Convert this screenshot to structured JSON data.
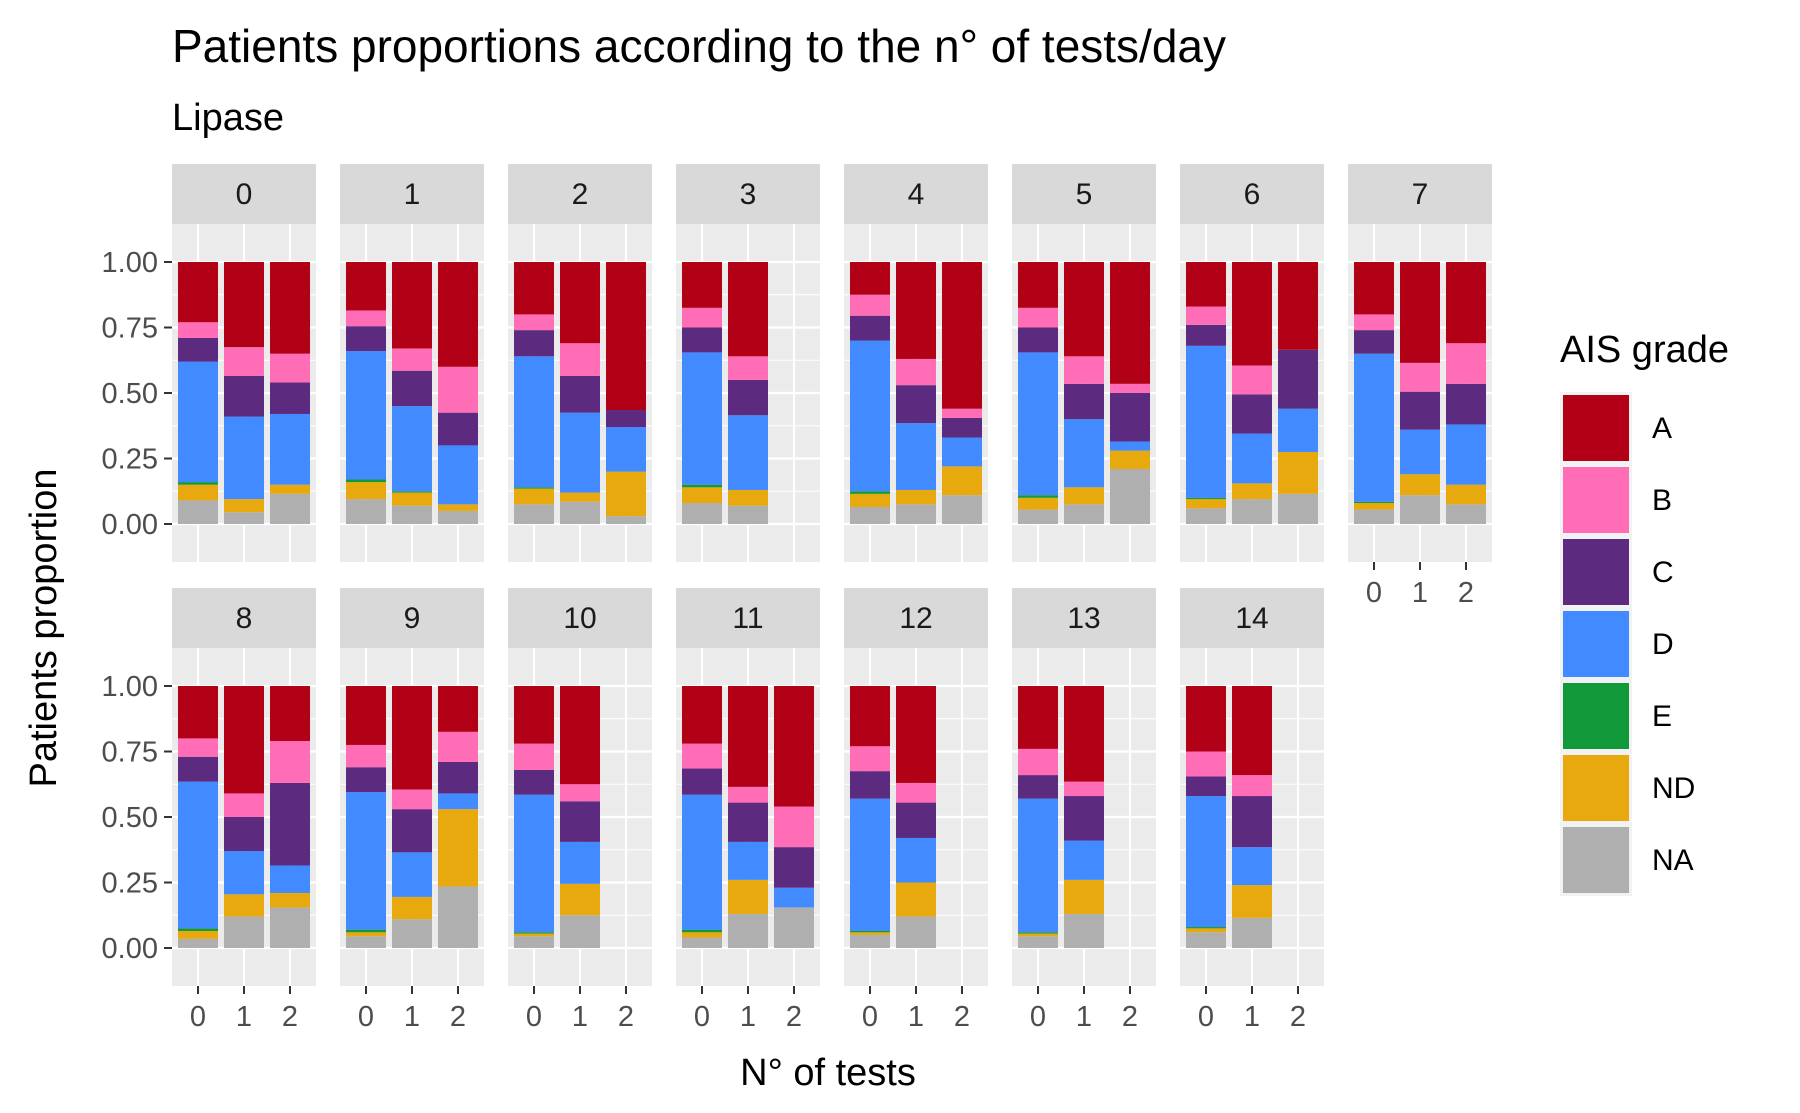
{
  "chart_data": {
    "type": "bar",
    "stacked": true,
    "title": "Patients proportions according to the n° of tests/day",
    "subtitle": "Lipase",
    "xlabel": "N° of tests",
    "ylabel": "Patients proportion",
    "ylim": [
      0,
      1
    ],
    "yticks": [
      "0.00",
      "0.25",
      "0.50",
      "0.75",
      "1.00"
    ],
    "x_categories": [
      "0",
      "1",
      "2"
    ],
    "legend": {
      "title": "AIS grade",
      "position": "right",
      "entries": [
        {
          "name": "A",
          "color": "#B20016"
        },
        {
          "name": "B",
          "color": "#FF6DB6"
        },
        {
          "name": "C",
          "color": "#5C2A7E"
        },
        {
          "name": "D",
          "color": "#418AFF"
        },
        {
          "name": "E",
          "color": "#129A3A"
        },
        {
          "name": "ND",
          "color": "#E7A90D"
        },
        {
          "name": "NA",
          "color": "#AFAFAF"
        }
      ]
    },
    "stack_order_bottom_to_top": [
      "NA",
      "ND",
      "E",
      "D",
      "C",
      "B",
      "A"
    ],
    "panels": [
      {
        "label": "0",
        "bars": [
          {
            "x": "0",
            "NA": 0.09,
            "ND": 0.06,
            "E": 0.01,
            "D": 0.46,
            "C": 0.09,
            "B": 0.06,
            "A": 0.23
          },
          {
            "x": "1",
            "NA": 0.045,
            "ND": 0.05,
            "E": 0.0,
            "D": 0.315,
            "C": 0.155,
            "B": 0.11,
            "A": 0.325
          },
          {
            "x": "2",
            "NA": 0.115,
            "ND": 0.035,
            "E": 0.0,
            "D": 0.27,
            "C": 0.12,
            "B": 0.11,
            "A": 0.35
          }
        ]
      },
      {
        "label": "1",
        "bars": [
          {
            "x": "0",
            "NA": 0.095,
            "ND": 0.065,
            "E": 0.01,
            "D": 0.49,
            "C": 0.095,
            "B": 0.06,
            "A": 0.185
          },
          {
            "x": "1",
            "NA": 0.07,
            "ND": 0.05,
            "E": 0.005,
            "D": 0.325,
            "C": 0.135,
            "B": 0.085,
            "A": 0.33
          },
          {
            "x": "2",
            "NA": 0.05,
            "ND": 0.025,
            "E": 0.0,
            "D": 0.225,
            "C": 0.125,
            "B": 0.175,
            "A": 0.4
          }
        ]
      },
      {
        "label": "2",
        "bars": [
          {
            "x": "0",
            "NA": 0.075,
            "ND": 0.06,
            "E": 0.005,
            "D": 0.5,
            "C": 0.1,
            "B": 0.06,
            "A": 0.2
          },
          {
            "x": "1",
            "NA": 0.085,
            "ND": 0.035,
            "E": 0.0,
            "D": 0.305,
            "C": 0.14,
            "B": 0.125,
            "A": 0.31
          },
          {
            "x": "2",
            "NA": 0.03,
            "ND": 0.17,
            "E": 0.0,
            "D": 0.17,
            "C": 0.065,
            "B": 0.0,
            "A": 0.565
          }
        ]
      },
      {
        "label": "3",
        "bars": [
          {
            "x": "0",
            "NA": 0.08,
            "ND": 0.06,
            "E": 0.01,
            "D": 0.505,
            "C": 0.095,
            "B": 0.075,
            "A": 0.175
          },
          {
            "x": "1",
            "NA": 0.07,
            "ND": 0.06,
            "E": 0.0,
            "D": 0.285,
            "C": 0.135,
            "B": 0.09,
            "A": 0.36
          }
        ]
      },
      {
        "label": "4",
        "bars": [
          {
            "x": "0",
            "NA": 0.065,
            "ND": 0.05,
            "E": 0.01,
            "D": 0.575,
            "C": 0.095,
            "B": 0.08,
            "A": 0.125
          },
          {
            "x": "1",
            "NA": 0.075,
            "ND": 0.055,
            "E": 0.0,
            "D": 0.255,
            "C": 0.145,
            "B": 0.1,
            "A": 0.37
          },
          {
            "x": "2",
            "NA": 0.11,
            "ND": 0.11,
            "E": 0.0,
            "D": 0.11,
            "C": 0.075,
            "B": 0.035,
            "A": 0.56
          }
        ]
      },
      {
        "label": "5",
        "bars": [
          {
            "x": "0",
            "NA": 0.055,
            "ND": 0.045,
            "E": 0.01,
            "D": 0.545,
            "C": 0.095,
            "B": 0.075,
            "A": 0.175
          },
          {
            "x": "1",
            "NA": 0.075,
            "ND": 0.065,
            "E": 0.0,
            "D": 0.26,
            "C": 0.135,
            "B": 0.105,
            "A": 0.36
          },
          {
            "x": "2",
            "NA": 0.21,
            "ND": 0.07,
            "E": 0.0,
            "D": 0.035,
            "C": 0.185,
            "B": 0.035,
            "A": 0.465
          }
        ]
      },
      {
        "label": "6",
        "bars": [
          {
            "x": "0",
            "NA": 0.06,
            "ND": 0.035,
            "E": 0.005,
            "D": 0.58,
            "C": 0.08,
            "B": 0.07,
            "A": 0.17
          },
          {
            "x": "1",
            "NA": 0.095,
            "ND": 0.06,
            "E": 0.0,
            "D": 0.19,
            "C": 0.15,
            "B": 0.11,
            "A": 0.395
          },
          {
            "x": "2",
            "NA": 0.115,
            "ND": 0.16,
            "E": 0.0,
            "D": 0.165,
            "C": 0.225,
            "B": 0.0,
            "A": 0.335
          }
        ]
      },
      {
        "label": "7",
        "bars": [
          {
            "x": "0",
            "NA": 0.055,
            "ND": 0.025,
            "E": 0.005,
            "D": 0.565,
            "C": 0.09,
            "B": 0.06,
            "A": 0.2
          },
          {
            "x": "1",
            "NA": 0.11,
            "ND": 0.08,
            "E": 0.0,
            "D": 0.17,
            "C": 0.145,
            "B": 0.11,
            "A": 0.385
          },
          {
            "x": "2",
            "NA": 0.075,
            "ND": 0.075,
            "E": 0.0,
            "D": 0.23,
            "C": 0.155,
            "B": 0.155,
            "A": 0.31
          }
        ]
      },
      {
        "label": "8",
        "bars": [
          {
            "x": "0",
            "NA": 0.035,
            "ND": 0.03,
            "E": 0.01,
            "D": 0.56,
            "C": 0.095,
            "B": 0.07,
            "A": 0.2
          },
          {
            "x": "1",
            "NA": 0.12,
            "ND": 0.085,
            "E": 0.0,
            "D": 0.165,
            "C": 0.13,
            "B": 0.09,
            "A": 0.41
          },
          {
            "x": "2",
            "NA": 0.155,
            "ND": 0.055,
            "E": 0.0,
            "D": 0.105,
            "C": 0.315,
            "B": 0.16,
            "A": 0.21
          }
        ]
      },
      {
        "label": "9",
        "bars": [
          {
            "x": "0",
            "NA": 0.045,
            "ND": 0.015,
            "E": 0.01,
            "D": 0.525,
            "C": 0.095,
            "B": 0.085,
            "A": 0.225
          },
          {
            "x": "1",
            "NA": 0.11,
            "ND": 0.085,
            "E": 0.0,
            "D": 0.17,
            "C": 0.165,
            "B": 0.075,
            "A": 0.395
          },
          {
            "x": "2",
            "NA": 0.235,
            "ND": 0.295,
            "E": 0.0,
            "D": 0.06,
            "C": 0.12,
            "B": 0.115,
            "A": 0.175
          }
        ]
      },
      {
        "label": "10",
        "bars": [
          {
            "x": "0",
            "NA": 0.045,
            "ND": 0.01,
            "E": 0.005,
            "D": 0.525,
            "C": 0.095,
            "B": 0.1,
            "A": 0.22
          },
          {
            "x": "1",
            "NA": 0.125,
            "ND": 0.12,
            "E": 0.0,
            "D": 0.16,
            "C": 0.155,
            "B": 0.065,
            "A": 0.375
          }
        ]
      },
      {
        "label": "11",
        "bars": [
          {
            "x": "0",
            "NA": 0.04,
            "ND": 0.02,
            "E": 0.01,
            "D": 0.515,
            "C": 0.1,
            "B": 0.095,
            "A": 0.22
          },
          {
            "x": "1",
            "NA": 0.13,
            "ND": 0.13,
            "E": 0.0,
            "D": 0.145,
            "C": 0.15,
            "B": 0.06,
            "A": 0.385
          },
          {
            "x": "2",
            "NA": 0.155,
            "ND": 0.0,
            "E": 0.0,
            "D": 0.075,
            "C": 0.155,
            "B": 0.155,
            "A": 0.46
          }
        ]
      },
      {
        "label": "12",
        "bars": [
          {
            "x": "0",
            "NA": 0.05,
            "ND": 0.01,
            "E": 0.005,
            "D": 0.505,
            "C": 0.105,
            "B": 0.095,
            "A": 0.23
          },
          {
            "x": "1",
            "NA": 0.12,
            "ND": 0.13,
            "E": 0.0,
            "D": 0.17,
            "C": 0.135,
            "B": 0.075,
            "A": 0.37
          }
        ]
      },
      {
        "label": "13",
        "bars": [
          {
            "x": "0",
            "NA": 0.045,
            "ND": 0.01,
            "E": 0.005,
            "D": 0.51,
            "C": 0.09,
            "B": 0.1,
            "A": 0.24
          },
          {
            "x": "1",
            "NA": 0.13,
            "ND": 0.13,
            "E": 0.0,
            "D": 0.15,
            "C": 0.17,
            "B": 0.055,
            "A": 0.365
          }
        ]
      },
      {
        "label": "14",
        "bars": [
          {
            "x": "0",
            "NA": 0.06,
            "ND": 0.015,
            "E": 0.005,
            "D": 0.5,
            "C": 0.075,
            "B": 0.095,
            "A": 0.25
          },
          {
            "x": "1",
            "NA": 0.115,
            "ND": 0.125,
            "E": 0.0,
            "D": 0.145,
            "C": 0.195,
            "B": 0.08,
            "A": 0.34
          }
        ]
      }
    ]
  }
}
